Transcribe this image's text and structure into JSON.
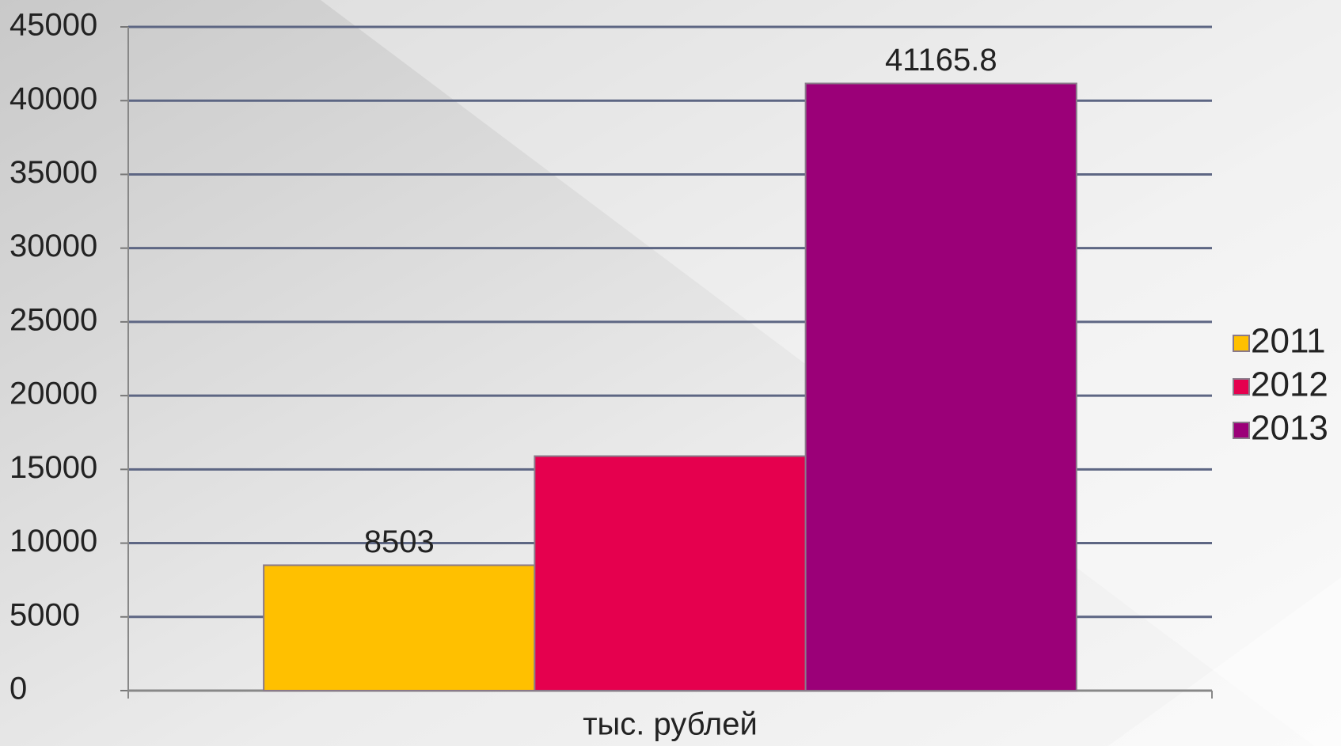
{
  "chart_data": {
    "type": "bar",
    "categories": [
      "тыс. рублей"
    ],
    "series": [
      {
        "name": "2011",
        "color": "#ffc000",
        "values": [
          8503
        ],
        "data_labels": true
      },
      {
        "name": "2012",
        "color": "#e5004e",
        "values": [
          15900
        ],
        "data_labels": false
      },
      {
        "name": "2013",
        "color": "#9b0078",
        "values": [
          41165.8
        ],
        "data_labels": true
      }
    ],
    "ylim": [
      0,
      45000
    ],
    "yticks": [
      0,
      5000,
      10000,
      15000,
      20000,
      25000,
      30000,
      35000,
      40000,
      45000
    ],
    "grid": true,
    "legend": "right"
  }
}
